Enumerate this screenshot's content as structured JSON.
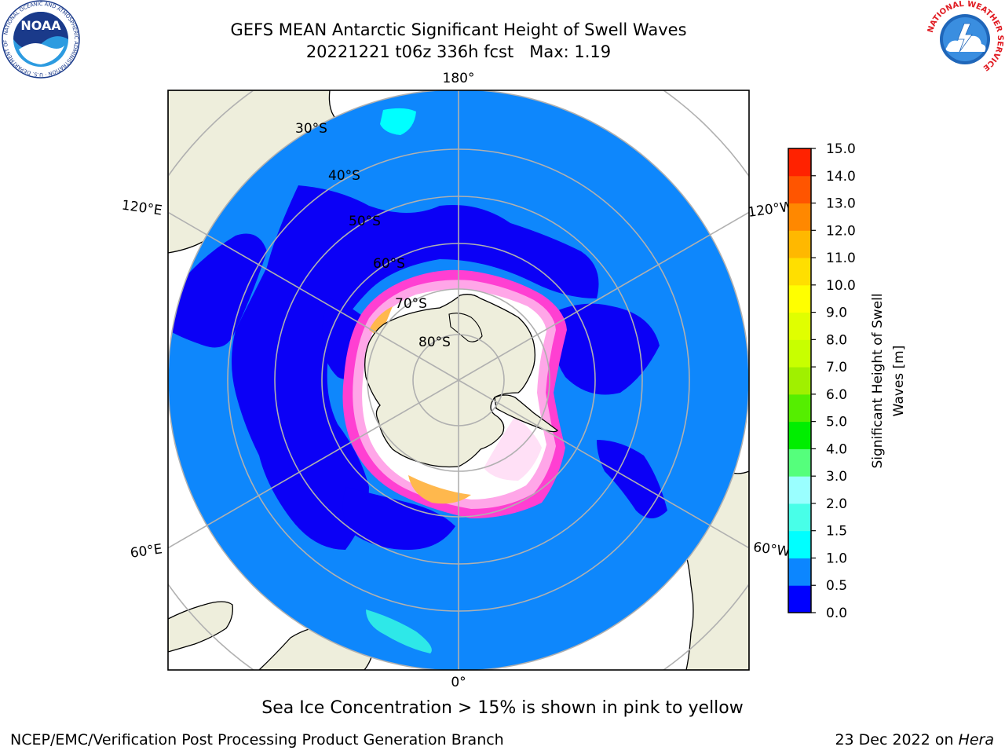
{
  "title": {
    "line1": "GEFS MEAN Antarctic Significant Height of Swell Waves",
    "line2": "20221221 t06z 336h fcst   Max: 1.19"
  },
  "logos": {
    "left": "NOAA",
    "left_ring_text": "NATIONAL OCEANIC AND ATMOSPHERIC ADMINISTRATION · U.S. DEPARTMENT OF COMMERCE",
    "right_ring_text": "NATIONAL WEATHER SERVICE"
  },
  "map": {
    "projection": "south-polar-stereographic",
    "lon_labels": [
      "180°",
      "120°E",
      "120°W",
      "60°E",
      "60°W",
      "0°"
    ],
    "lat_labels": [
      "30°S",
      "40°S",
      "50°S",
      "60°S",
      "70°S",
      "80°S"
    ],
    "colors": {
      "ocean_low": "#0e87fc",
      "ocean_lowest": "#0b00f6",
      "land": "#eeeedc",
      "ice_pink": "#ff3fd2",
      "ice_white": "#ffffff",
      "ice_orange": "#ffa500",
      "graticule": "#b0b0b0"
    }
  },
  "colorbar": {
    "label_line1": "Significant Height of Swell",
    "label_line2": "Waves [m]",
    "ticks": [
      "0.0",
      "0.5",
      "1.0",
      "1.5",
      "2.0",
      "3.0",
      "4.0",
      "5.0",
      "6.0",
      "7.0",
      "8.0",
      "9.0",
      "10.0",
      "11.0",
      "12.0",
      "13.0",
      "14.0",
      "15.0"
    ],
    "colors": [
      "#0000ff",
      "#0c86ff",
      "#00ffff",
      "#48ffe8",
      "#9affff",
      "#55ff7c",
      "#00ee00",
      "#55ee00",
      "#a0f000",
      "#c8ff00",
      "#e0ff00",
      "#ffff00",
      "#ffdf00",
      "#ffb800",
      "#ff8800",
      "#ff5500",
      "#ff2200"
    ]
  },
  "caption": "Sea Ice Concentration > 15% is shown in pink to yellow",
  "footer": {
    "left": "NCEP/EMC/Verification Post Processing Product Generation Branch",
    "right_prefix": "23 Dec 2022 on ",
    "right_host": "Hera"
  }
}
